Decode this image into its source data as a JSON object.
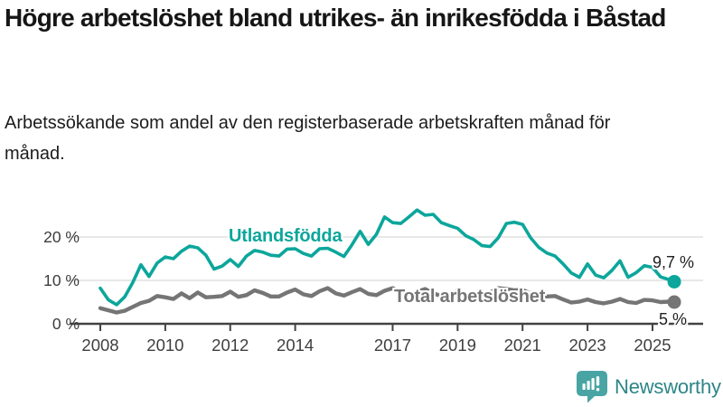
{
  "chart_data": {
    "type": "line",
    "title": "Högre arbetslöshet bland utrikes- än inrikesfödda i Båstad",
    "subtitle": "Arbetssökande som andel av den registerbaserade arbetskraften månad för månad.",
    "unit": "%",
    "grid": "horizontal",
    "xlim": [
      2008,
      2025.9
    ],
    "ylim": [
      0,
      28
    ],
    "x_ticks": [
      2008,
      2010,
      2012,
      2014,
      2017,
      2019,
      2021,
      2023,
      2025
    ],
    "y_ticks": [
      {
        "value": 0,
        "label": "0 %"
      },
      {
        "value": 10,
        "label": "10 %"
      },
      {
        "value": 20,
        "label": "20 %"
      }
    ],
    "x": [
      2008,
      2008.25,
      2008.5,
      2008.75,
      2009,
      2009.25,
      2009.5,
      2009.75,
      2010,
      2010.25,
      2010.5,
      2010.75,
      2011,
      2011.25,
      2011.5,
      2011.75,
      2012,
      2012.25,
      2012.5,
      2012.75,
      2013,
      2013.25,
      2013.5,
      2013.75,
      2014,
      2014.25,
      2014.5,
      2014.75,
      2015,
      2015.25,
      2015.5,
      2015.75,
      2016,
      2016.25,
      2016.5,
      2016.75,
      2017,
      2017.25,
      2017.5,
      2017.75,
      2018,
      2018.25,
      2018.5,
      2018.75,
      2019,
      2019.25,
      2019.5,
      2019.75,
      2020,
      2020.25,
      2020.5,
      2020.75,
      2021,
      2021.25,
      2021.5,
      2021.75,
      2022,
      2022.25,
      2022.5,
      2022.75,
      2023,
      2023.25,
      2023.5,
      2023.75,
      2024,
      2024.25,
      2024.5,
      2024.75,
      2025,
      2025.25,
      2025.5,
      2025.67
    ],
    "series": [
      {
        "id": "utlandsfodda",
        "name": "Utlandsfödda",
        "color": "#0ca69b",
        "end_value": 9.7,
        "end_label": "9,7 %",
        "values": [
          8.2,
          5.5,
          4.4,
          6.2,
          9.5,
          13.6,
          10.9,
          14.0,
          15.4,
          15.0,
          16.7,
          17.9,
          17.5,
          15.8,
          12.6,
          13.3,
          14.8,
          13.2,
          15.6,
          16.9,
          16.5,
          15.8,
          15.6,
          17.2,
          17.3,
          16.2,
          15.6,
          17.3,
          17.4,
          16.5,
          15.5,
          18.2,
          21.3,
          18.3,
          20.6,
          24.6,
          23.3,
          23.1,
          24.6,
          26.2,
          25.0,
          25.2,
          23.3,
          22.6,
          22.0,
          20.3,
          19.4,
          18.0,
          17.8,
          19.8,
          23.1,
          23.4,
          22.9,
          19.8,
          17.6,
          16.3,
          15.6,
          13.8,
          11.7,
          10.7,
          13.8,
          11.2,
          10.6,
          12.3,
          14.5,
          10.7,
          11.8,
          13.4,
          13.0,
          10.8,
          10.2,
          9.7
        ]
      },
      {
        "id": "total",
        "name": "Total arbetslöshet",
        "color": "#757575",
        "end_value": 5.0,
        "end_label": "5 %",
        "values": [
          3.6,
          3.1,
          2.6,
          3.0,
          3.9,
          4.8,
          5.3,
          6.4,
          6.1,
          5.7,
          7.0,
          5.9,
          7.2,
          6.1,
          6.2,
          6.4,
          7.4,
          6.2,
          6.6,
          7.7,
          7.1,
          6.3,
          6.3,
          7.2,
          7.9,
          6.8,
          6.4,
          7.5,
          8.2,
          7.0,
          6.5,
          7.3,
          8.0,
          6.9,
          6.6,
          7.6,
          8.2,
          7.2,
          6.8,
          7.4,
          8.0,
          7.0,
          6.4,
          7.0,
          7.4,
          6.6,
          6.3,
          6.9,
          7.2,
          8.2,
          8.0,
          7.7,
          7.8,
          7.0,
          6.4,
          6.3,
          6.4,
          5.6,
          4.9,
          5.1,
          5.6,
          5.0,
          4.7,
          5.1,
          5.7,
          5.0,
          4.8,
          5.5,
          5.4,
          5.0,
          5.1,
          5.0
        ]
      }
    ]
  },
  "logo": {
    "text": "Newsworthy"
  }
}
